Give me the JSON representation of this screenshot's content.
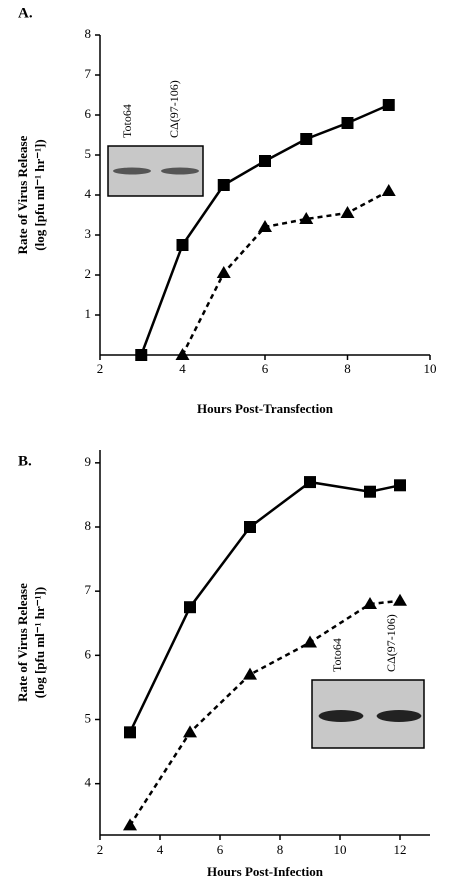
{
  "chart_data": [
    {
      "type": "line",
      "panel_label": "A.",
      "ylabel": [
        "Rate of Virus Release",
        "(log [pfu ml⁻¹ hr⁻¹])"
      ],
      "xlabel": "Hours  Post-Transfection",
      "xlim": [
        2,
        10
      ],
      "xticks": [
        2,
        4,
        6,
        8,
        10
      ],
      "ylim": [
        0,
        8
      ],
      "yticks": [
        1,
        2,
        3,
        4,
        5,
        6,
        7,
        8
      ],
      "inset_labels": [
        "Toto64",
        "CΔ(97-106)"
      ],
      "series": [
        {
          "color": "#000000",
          "marker": "square",
          "line_style": "solid",
          "x": [
            3,
            4,
            5,
            6,
            7,
            8,
            9
          ],
          "values": [
            0,
            2.75,
            4.25,
            4.85,
            5.4,
            5.8,
            6.25
          ]
        },
        {
          "color": "#000000",
          "marker": "triangle",
          "line_style": "dashed",
          "x": [
            4,
            5,
            6,
            7,
            8,
            9
          ],
          "values": [
            0,
            2.05,
            3.2,
            3.4,
            3.55,
            4.1
          ]
        }
      ]
    },
    {
      "type": "line",
      "panel_label": "B.",
      "ylabel": [
        "Rate of Virus Release",
        "(log [pfu ml⁻¹ hr⁻¹])"
      ],
      "xlabel": "Hours Post-Infection",
      "xlim": [
        2,
        13
      ],
      "xticks": [
        2,
        4,
        6,
        8,
        10,
        12
      ],
      "ylim": [
        3.2,
        9.2
      ],
      "yticks": [
        4,
        5,
        6,
        7,
        8,
        9
      ],
      "inset_labels": [
        "Toto64",
        "CΔ(97-106)"
      ],
      "series": [
        {
          "color": "#000000",
          "marker": "square",
          "line_style": "solid",
          "x": [
            3,
            5,
            7,
            9,
            11,
            12
          ],
          "values": [
            4.8,
            6.75,
            8.0,
            8.7,
            8.55,
            8.65
          ]
        },
        {
          "color": "#000000",
          "marker": "triangle",
          "line_style": "dashed",
          "x": [
            3,
            5,
            7,
            9,
            11,
            12
          ],
          "values": [
            3.35,
            4.8,
            5.7,
            6.2,
            6.8,
            6.85
          ]
        }
      ]
    }
  ]
}
